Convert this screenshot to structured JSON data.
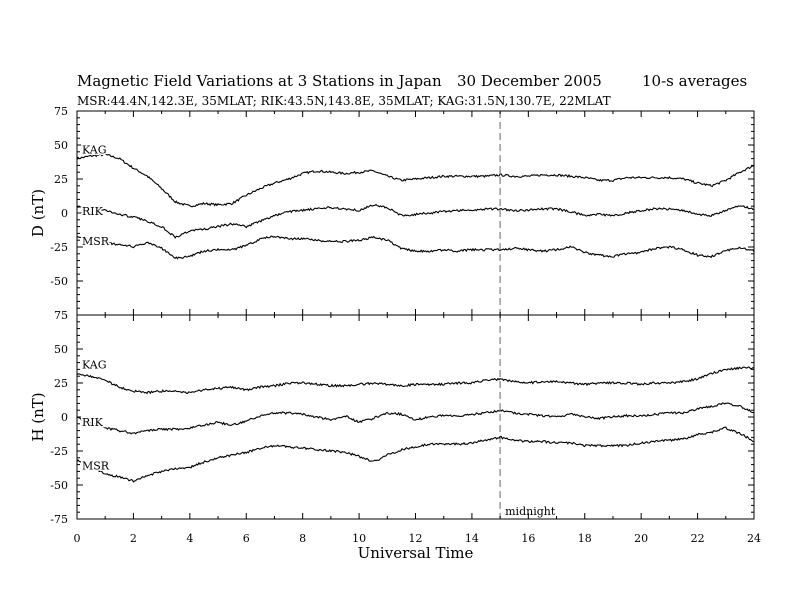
{
  "title": "Magnetic Field Variations at 3 Stations in Japan",
  "date": "30 December 2005",
  "averaging": "10-s averages",
  "subtitle": "MSR:44.4N,142.3E, 35MLAT;   RIK:43.5N,143.8E, 35MLAT;   KAG:31.5N,130.7E, 22MLAT",
  "chart_data": [
    {
      "type": "line",
      "panel": "D",
      "ylabel": "D (nT)",
      "xlabel": "Universal Time",
      "xlim": [
        0,
        24
      ],
      "ylim": [
        -75,
        75
      ],
      "xticks": [
        0,
        2,
        4,
        6,
        8,
        10,
        12,
        14,
        16,
        18,
        20,
        22,
        24
      ],
      "yticks": [
        -75,
        -50,
        -25,
        0,
        25,
        50,
        75
      ],
      "annotation": {
        "x": 15,
        "text": "midnight"
      },
      "x": [
        0,
        0.5,
        1,
        1.5,
        2,
        2.5,
        3,
        3.5,
        4,
        4.5,
        5,
        5.5,
        6,
        6.5,
        7,
        7.5,
        8,
        8.5,
        9,
        9.5,
        10,
        10.5,
        11,
        11.5,
        12,
        12.5,
        13,
        13.5,
        14,
        14.5,
        15,
        15.5,
        16,
        16.5,
        17,
        17.5,
        18,
        18.5,
        19,
        19.5,
        20,
        20.5,
        21,
        21.5,
        22,
        22.5,
        23,
        23.5,
        24
      ],
      "series": [
        {
          "name": "KAG",
          "values": [
            40,
            42,
            43,
            40,
            33,
            27,
            18,
            8,
            5,
            7,
            6,
            7,
            13,
            18,
            22,
            25,
            29,
            31,
            30,
            29,
            30,
            31,
            27,
            24,
            25,
            26,
            27,
            27,
            27,
            27,
            28,
            27,
            27,
            28,
            28,
            27,
            26,
            24,
            24,
            26,
            26,
            26,
            26,
            25,
            22,
            20,
            24,
            30,
            35
          ]
        },
        {
          "name": "RIK",
          "values": [
            5,
            4,
            2,
            -1,
            -3,
            -6,
            -10,
            -18,
            -13,
            -12,
            -10,
            -8,
            -10,
            -6,
            -2,
            1,
            2,
            3,
            4,
            3,
            2,
            6,
            4,
            -2,
            -1,
            0,
            1,
            2,
            2,
            3,
            3,
            2,
            2,
            3,
            3,
            1,
            -2,
            -1,
            -2,
            0,
            2,
            3,
            3,
            2,
            -1,
            -2,
            2,
            5,
            3
          ]
        },
        {
          "name": "MSR",
          "values": [
            -17,
            -20,
            -22,
            -23,
            -25,
            -22,
            -26,
            -33,
            -32,
            -28,
            -27,
            -27,
            -24,
            -19,
            -17,
            -19,
            -19,
            -20,
            -21,
            -21,
            -20,
            -18,
            -20,
            -26,
            -28,
            -28,
            -27,
            -28,
            -27,
            -27,
            -27,
            -26,
            -27,
            -28,
            -27,
            -25,
            -29,
            -31,
            -32,
            -30,
            -29,
            -26,
            -25,
            -27,
            -31,
            -32,
            -28,
            -25,
            -28
          ]
        }
      ]
    },
    {
      "type": "line",
      "panel": "H",
      "ylabel": "H (nT)",
      "xlabel": "Universal Time",
      "xlim": [
        0,
        24
      ],
      "ylim": [
        -75,
        75
      ],
      "xticks": [
        0,
        2,
        4,
        6,
        8,
        10,
        12,
        14,
        16,
        18,
        20,
        22,
        24
      ],
      "yticks": [
        -75,
        -50,
        -25,
        0,
        25,
        50,
        75
      ],
      "x": [
        0,
        0.5,
        1,
        1.5,
        2,
        2.5,
        3,
        3.5,
        4,
        4.5,
        5,
        5.5,
        6,
        6.5,
        7,
        7.5,
        8,
        8.5,
        9,
        9.5,
        10,
        10.5,
        11,
        11.5,
        12,
        12.5,
        13,
        13.5,
        14,
        14.5,
        15,
        15.5,
        16,
        16.5,
        17,
        17.5,
        18,
        18.5,
        19,
        19.5,
        20,
        20.5,
        21,
        21.5,
        22,
        22.5,
        23,
        23.5,
        24
      ],
      "series": [
        {
          "name": "KAG",
          "values": [
            32,
            30,
            27,
            22,
            19,
            18,
            19,
            19,
            18,
            20,
            21,
            22,
            20,
            22,
            23,
            25,
            25,
            24,
            23,
            23,
            24,
            25,
            24,
            23,
            24,
            24,
            24,
            25,
            25,
            27,
            28,
            26,
            25,
            26,
            26,
            25,
            24,
            25,
            25,
            25,
            24,
            25,
            25,
            26,
            28,
            32,
            35,
            36,
            36
          ]
        },
        {
          "name": "RIK",
          "values": [
            0,
            -4,
            -8,
            -10,
            -12,
            -10,
            -9,
            -9,
            -8,
            -6,
            -4,
            -6,
            -3,
            1,
            3,
            3,
            2,
            0,
            -2,
            1,
            -4,
            -1,
            3,
            2,
            -2,
            0,
            1,
            1,
            2,
            3,
            5,
            3,
            2,
            1,
            0,
            2,
            0,
            -1,
            0,
            1,
            1,
            2,
            3,
            3,
            6,
            8,
            10,
            8,
            3
          ]
        },
        {
          "name": "MSR",
          "values": [
            -32,
            -36,
            -42,
            -44,
            -47,
            -43,
            -40,
            -38,
            -37,
            -33,
            -30,
            -28,
            -26,
            -23,
            -21,
            -22,
            -23,
            -24,
            -25,
            -26,
            -29,
            -33,
            -28,
            -24,
            -22,
            -20,
            -20,
            -20,
            -19,
            -17,
            -15,
            -17,
            -18,
            -18,
            -19,
            -19,
            -21,
            -21,
            -21,
            -21,
            -19,
            -18,
            -17,
            -16,
            -13,
            -11,
            -8,
            -12,
            -18
          ]
        }
      ]
    }
  ]
}
